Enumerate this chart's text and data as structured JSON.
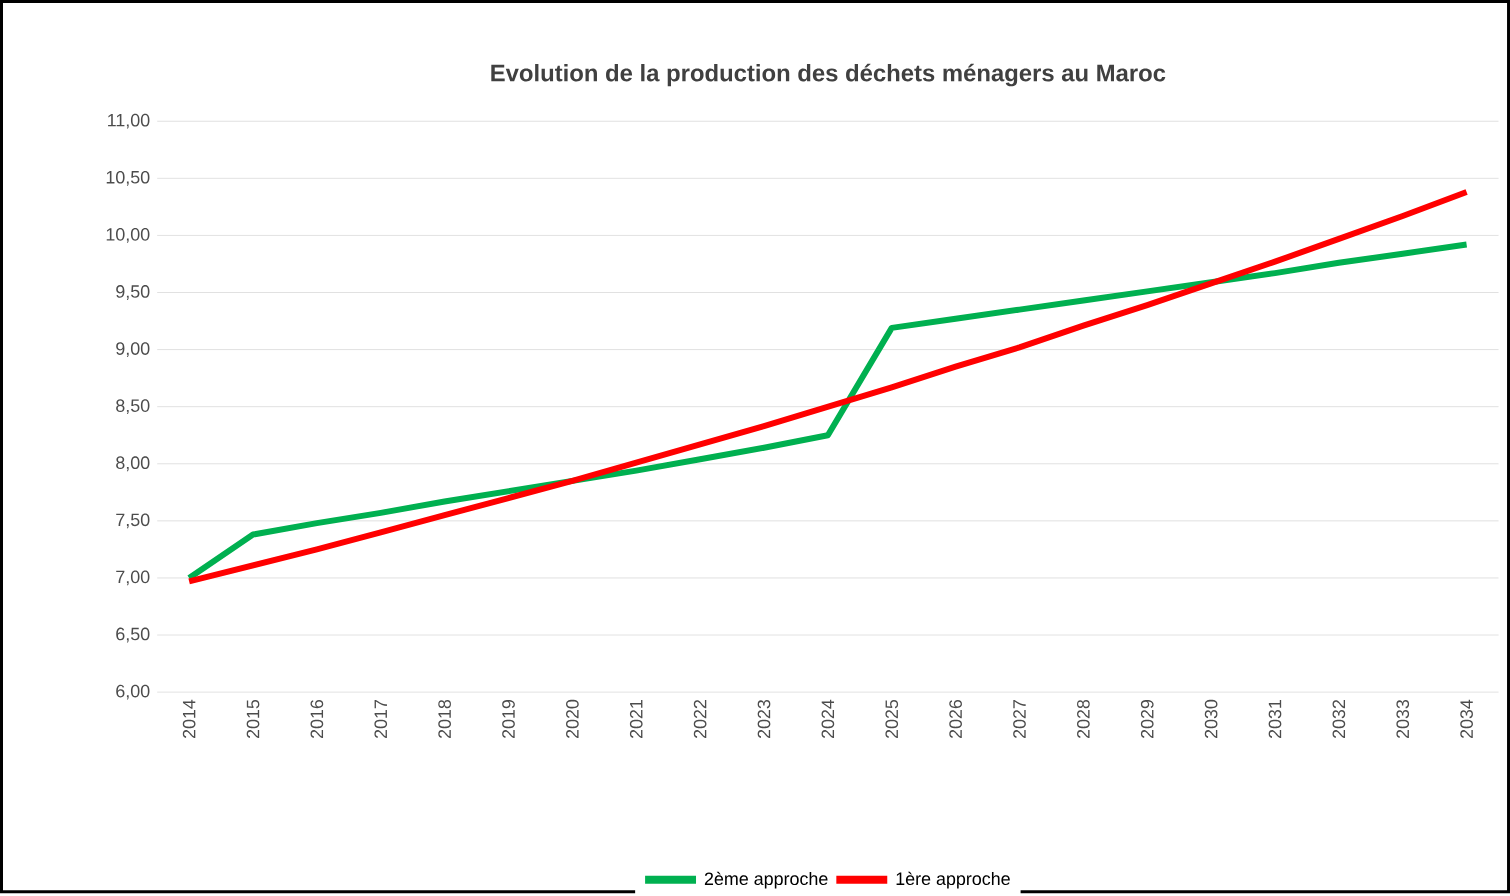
{
  "chart_data": {
    "type": "line",
    "title": "Evolution de la production des déchets ménagers au Maroc",
    "categories": [
      "2014",
      "2015",
      "2016",
      "2017",
      "2018",
      "2019",
      "2020",
      "2021",
      "2022",
      "2023",
      "2024",
      "2025",
      "2026",
      "2027",
      "2028",
      "2029",
      "2030",
      "2031",
      "2032",
      "2033",
      "2034"
    ],
    "series": [
      {
        "name": "2ème approche",
        "color": "#00b050",
        "values": [
          7.0,
          7.38,
          7.48,
          7.57,
          7.67,
          7.76,
          7.85,
          7.94,
          8.04,
          8.14,
          8.25,
          9.19,
          9.27,
          9.35,
          9.43,
          9.51,
          9.59,
          9.67,
          9.76,
          9.84,
          9.92
        ]
      },
      {
        "name": "1ère approche",
        "color": "#ff0000",
        "values": [
          6.97,
          7.11,
          7.25,
          7.4,
          7.55,
          7.7,
          7.85,
          8.01,
          8.17,
          8.33,
          8.5,
          8.67,
          8.85,
          9.02,
          9.21,
          9.39,
          9.58,
          9.77,
          9.97,
          10.17,
          10.38
        ]
      }
    ],
    "ylim": [
      6,
      11
    ],
    "yticks": [
      {
        "value": 6,
        "label": "6,00"
      },
      {
        "value": 6.5,
        "label": "6,50"
      },
      {
        "value": 7,
        "label": "7,00"
      },
      {
        "value": 7.5,
        "label": "7,50"
      },
      {
        "value": 8,
        "label": "8,00"
      },
      {
        "value": 8.5,
        "label": "8,50"
      },
      {
        "value": 9,
        "label": "9,00"
      },
      {
        "value": 9.5,
        "label": "9,50"
      },
      {
        "value": 10,
        "label": "10,00"
      },
      {
        "value": 10.5,
        "label": "10,50"
      },
      {
        "value": 11,
        "label": "11,00"
      }
    ],
    "grid": "y",
    "legend": "bottom",
    "marker": "none",
    "line_style": "solid"
  }
}
